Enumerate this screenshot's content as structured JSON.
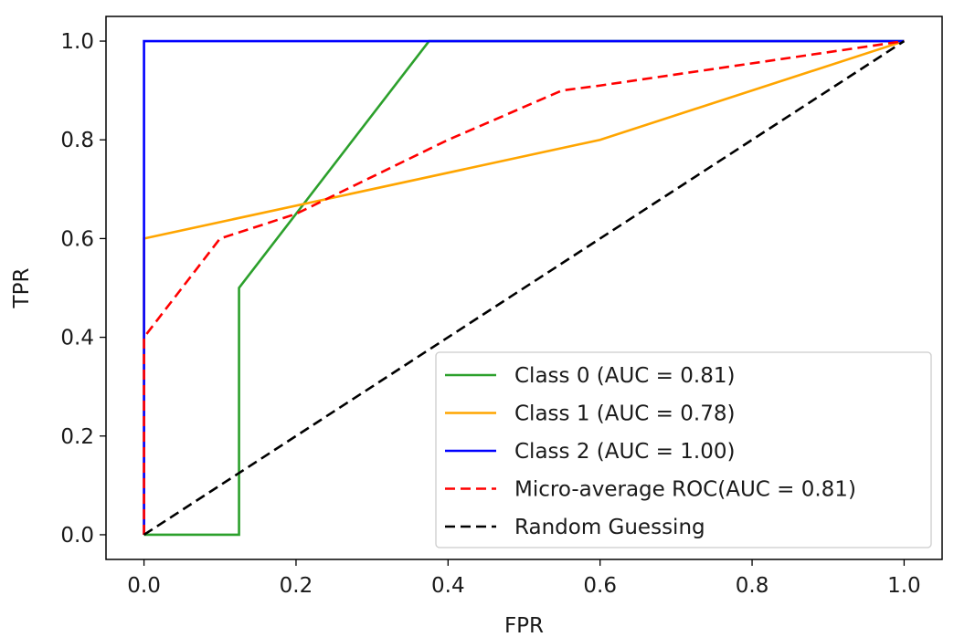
{
  "chart_data": {
    "type": "line",
    "title": "",
    "xlabel": "FPR",
    "ylabel": "TPR",
    "xlim": [
      -0.05,
      1.05
    ],
    "ylim": [
      -0.05,
      1.05
    ],
    "xticks": [
      0.0,
      0.2,
      0.4,
      0.6,
      0.8,
      1.0
    ],
    "yticks": [
      0.0,
      0.2,
      0.4,
      0.6,
      0.8,
      1.0
    ],
    "xtick_labels": [
      "0.0",
      "0.2",
      "0.4",
      "0.6",
      "0.8",
      "1.0"
    ],
    "ytick_labels": [
      "0.0",
      "0.2",
      "0.4",
      "0.6",
      "0.8",
      "1.0"
    ],
    "grid": false,
    "legend_position": "bottom-right",
    "series": [
      {
        "name": "Class 0 (AUC = 0.81)",
        "color": "#2ca02c",
        "dash": "solid",
        "x": [
          0.0,
          0.125,
          0.125,
          0.375,
          1.0
        ],
        "y": [
          0.0,
          0.0,
          0.5,
          1.0,
          1.0
        ]
      },
      {
        "name": "Class 1 (AUC = 0.78)",
        "color": "#ffa500",
        "dash": "solid",
        "x": [
          0.0,
          0.0,
          0.6,
          1.0
        ],
        "y": [
          0.0,
          0.6,
          0.8,
          1.0
        ]
      },
      {
        "name": "Class 2 (AUC = 1.00)",
        "color": "#0000ff",
        "dash": "solid",
        "x": [
          0.0,
          0.0,
          1.0
        ],
        "y": [
          0.0,
          1.0,
          1.0
        ]
      },
      {
        "name": "Micro-average ROC(AUC = 0.81)",
        "color": "#ff0000",
        "dash": "dashed",
        "x": [
          0.0,
          0.0,
          0.1,
          0.2,
          0.4,
          0.55,
          0.6,
          1.0
        ],
        "y": [
          0.0,
          0.4,
          0.6,
          0.65,
          0.8,
          0.9,
          0.91,
          1.0
        ]
      },
      {
        "name": "Random Guessing",
        "color": "#000000",
        "dash": "dashed",
        "x": [
          0.0,
          1.0
        ],
        "y": [
          0.0,
          1.0
        ]
      }
    ]
  }
}
